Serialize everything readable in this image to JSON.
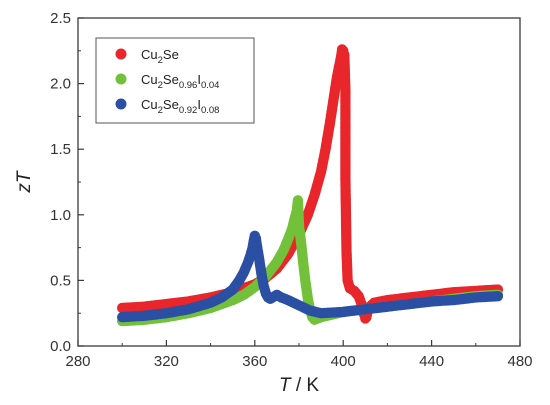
{
  "chart_data": {
    "type": "scatter",
    "title": "",
    "xlabel": {
      "var": "T",
      "rest": " / K"
    },
    "ylabel": {
      "var": "zT"
    },
    "xlim": [
      280,
      480
    ],
    "ylim": [
      0.0,
      2.5
    ],
    "xticks": [
      "280",
      "320",
      "360",
      "400",
      "440",
      "480"
    ],
    "yticks": [
      "0.0",
      "0.5",
      "1.0",
      "1.5",
      "2.0",
      "2.5"
    ],
    "grid": false,
    "legend_position": "top-left",
    "series": [
      {
        "name": "Cu2Se",
        "label_parts": [
          {
            "t": "Cu",
            "sub": false
          },
          {
            "t": "2",
            "sub": true
          },
          {
            "t": "Se",
            "sub": false
          }
        ],
        "color": "#e8262b",
        "x": [
          300,
          310,
          320,
          330,
          340,
          350,
          360,
          365,
          370,
          375,
          380,
          384,
          387,
          390,
          392,
          394,
          396,
          397,
          398,
          399,
          399.5,
          400,
          400.5,
          401,
          401,
          401.5,
          402,
          403,
          405,
          407,
          408.5,
          409.5,
          410,
          410.5,
          411,
          412,
          414,
          420,
          430,
          440,
          450,
          460,
          470
        ],
        "y": [
          0.29,
          0.3,
          0.32,
          0.34,
          0.37,
          0.41,
          0.47,
          0.52,
          0.59,
          0.7,
          0.85,
          1.0,
          1.15,
          1.33,
          1.5,
          1.7,
          1.92,
          2.03,
          2.12,
          2.2,
          2.26,
          2.25,
          2.22,
          1.95,
          1.28,
          0.72,
          0.5,
          0.44,
          0.42,
          0.38,
          0.31,
          0.24,
          0.21,
          0.22,
          0.26,
          0.3,
          0.33,
          0.35,
          0.37,
          0.39,
          0.41,
          0.42,
          0.43
        ]
      },
      {
        "name": "Cu2Se0.96I0.04",
        "label_parts": [
          {
            "t": "Cu",
            "sub": false
          },
          {
            "t": "2",
            "sub": true
          },
          {
            "t": "Se",
            "sub": false
          },
          {
            "t": "0.96",
            "sub": true
          },
          {
            "t": "I",
            "sub": false
          },
          {
            "t": "0.04",
            "sub": true
          }
        ],
        "color": "#73c13a",
        "x": [
          300,
          310,
          320,
          330,
          340,
          350,
          355,
          360,
          365,
          370,
          373,
          375,
          377,
          378,
          379,
          379.5,
          380,
          381,
          382,
          383,
          384,
          385,
          386,
          387,
          390,
          400,
          410,
          420,
          430,
          440,
          450,
          460,
          470
        ],
        "y": [
          0.19,
          0.2,
          0.22,
          0.25,
          0.29,
          0.35,
          0.39,
          0.45,
          0.53,
          0.64,
          0.73,
          0.81,
          0.9,
          0.97,
          1.03,
          1.11,
          0.92,
          0.78,
          0.62,
          0.48,
          0.36,
          0.28,
          0.22,
          0.2,
          0.22,
          0.26,
          0.28,
          0.3,
          0.32,
          0.34,
          0.36,
          0.38,
          0.39
        ]
      },
      {
        "name": "Cu2Se0.92I0.08",
        "label_parts": [
          {
            "t": "Cu",
            "sub": false
          },
          {
            "t": "2",
            "sub": true
          },
          {
            "t": "Se",
            "sub": false
          },
          {
            "t": "0.92",
            "sub": true
          },
          {
            "t": "I",
            "sub": false
          },
          {
            "t": "0.08",
            "sub": true
          }
        ],
        "color": "#2a4fa3",
        "x": [
          300,
          310,
          320,
          330,
          340,
          345,
          350,
          353,
          355,
          357,
          358,
          359,
          359.5,
          360,
          360.5,
          361,
          362,
          363,
          364,
          365,
          366,
          367,
          368,
          370,
          372,
          375,
          380,
          385,
          390,
          400,
          410,
          420,
          430,
          440,
          450,
          460,
          470
        ],
        "y": [
          0.22,
          0.23,
          0.25,
          0.28,
          0.33,
          0.37,
          0.43,
          0.5,
          0.56,
          0.64,
          0.69,
          0.75,
          0.8,
          0.84,
          0.82,
          0.76,
          0.66,
          0.55,
          0.46,
          0.4,
          0.37,
          0.36,
          0.37,
          0.39,
          0.37,
          0.35,
          0.31,
          0.27,
          0.25,
          0.26,
          0.28,
          0.3,
          0.32,
          0.34,
          0.35,
          0.37,
          0.38
        ]
      }
    ]
  }
}
